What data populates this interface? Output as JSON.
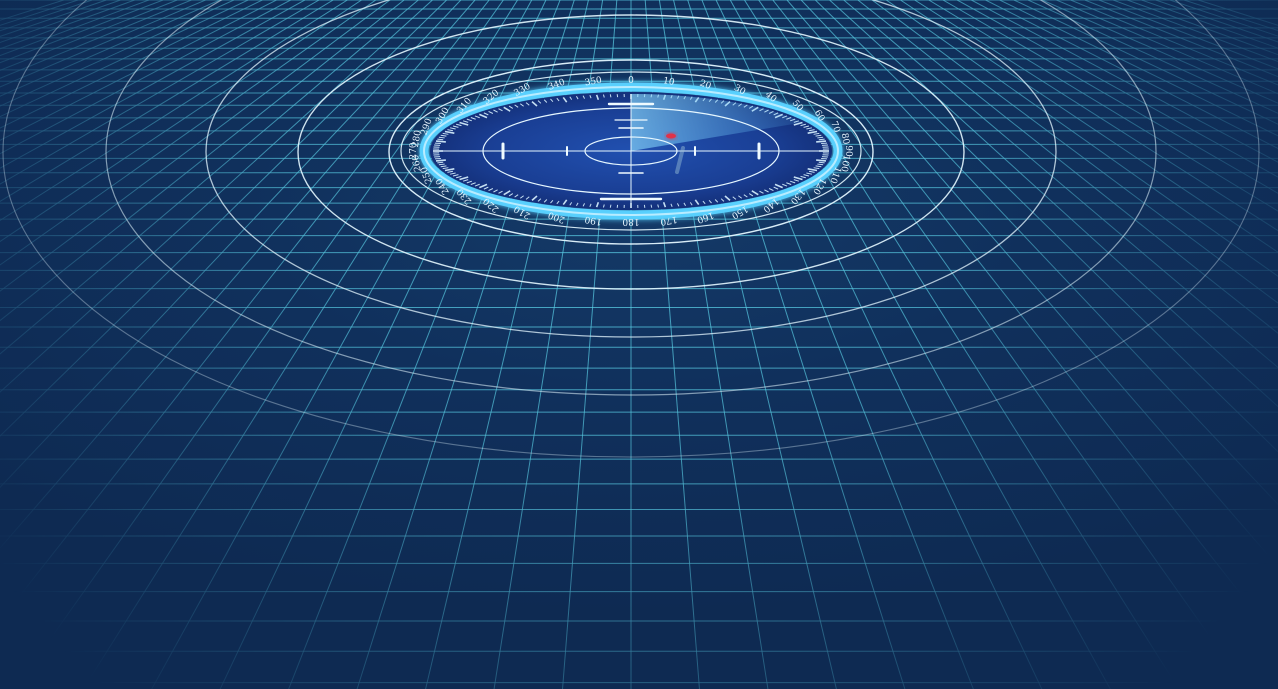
{
  "scene": {
    "description_label": "",
    "colors": {
      "background": "#0f2850",
      "grid": "#5fd8ee",
      "ring": "#e4f7ff",
      "dial_glow": "#5ad2ff",
      "dial_face": "#173a8c",
      "sweep": "#7fd6ff",
      "target": "#e0304a"
    },
    "compass_labels": [
      "0",
      "10",
      "20",
      "30",
      "40",
      "50",
      "60",
      "70",
      "80",
      "90",
      "100",
      "110",
      "120",
      "130",
      "140",
      "150",
      "160",
      "170",
      "180",
      "190",
      "200",
      "210",
      "220",
      "230",
      "240",
      "250",
      "260",
      "270",
      "280",
      "290",
      "300",
      "310",
      "320",
      "330",
      "340",
      "350"
    ],
    "icons": {
      "crosshair": "crosshair-icon",
      "target_blip": "target-blip-icon"
    }
  }
}
